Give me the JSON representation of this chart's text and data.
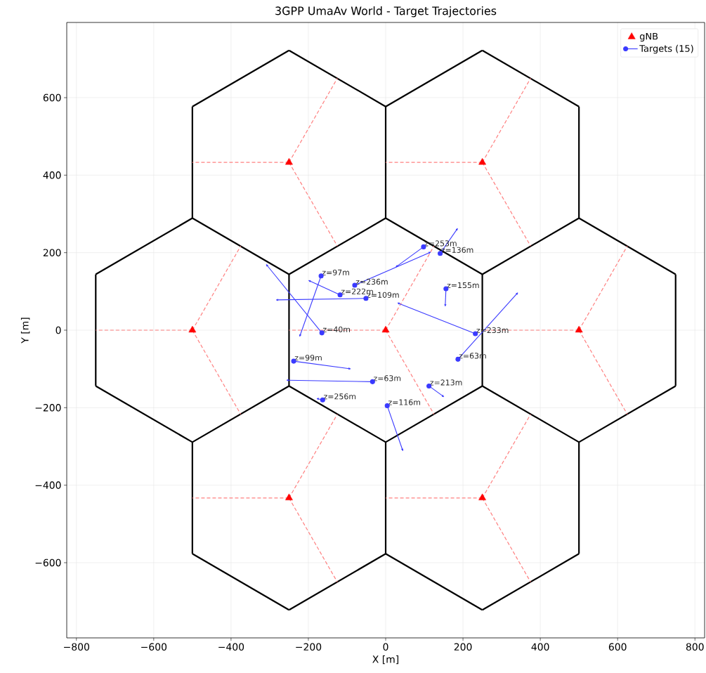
{
  "chart_data": {
    "type": "line",
    "title": "3GPP UmaAv World - Target Trajectories",
    "xlabel": "X [m]",
    "ylabel": "Y [m]",
    "xlim": [
      -825,
      825
    ],
    "ylim": [
      -794,
      794
    ],
    "xticks": [
      {
        "value": -800,
        "label": "−800"
      },
      {
        "value": -600,
        "label": "−600"
      },
      {
        "value": -400,
        "label": "−400"
      },
      {
        "value": -200,
        "label": "−200"
      },
      0,
      200,
      400,
      600,
      800
    ],
    "yticks": [
      {
        "value": -600,
        "label": "−600"
      },
      {
        "value": -400,
        "label": "−400"
      },
      {
        "value": -200,
        "label": "−200"
      },
      0,
      200,
      400,
      600
    ],
    "grid": true,
    "legend": "top right",
    "series": [
      {
        "color": "#000000",
        "marker": "none",
        "x": [
          250,
          0
        ],
        "values": [
          144,
          289
        ]
      },
      {
        "color": "#000000",
        "marker": "none",
        "x": [
          0,
          -250
        ],
        "values": [
          289,
          144
        ]
      },
      {
        "color": "#000000",
        "marker": "none",
        "x": [
          -250,
          -250
        ],
        "values": [
          144,
          -144
        ]
      },
      {
        "color": "#000000",
        "marker": "none",
        "x": [
          -250,
          0
        ],
        "values": [
          -144,
          -289
        ]
      },
      {
        "color": "#000000",
        "marker": "none",
        "x": [
          0,
          250
        ],
        "values": [
          -289,
          -144
        ]
      },
      {
        "color": "#000000",
        "marker": "none",
        "x": [
          250,
          250
        ],
        "values": [
          -144,
          144
        ]
      },
      {
        "color": "#000000",
        "marker": "none",
        "x": [
          750,
          500
        ],
        "values": [
          144,
          289
        ]
      },
      {
        "color": "#000000",
        "marker": "none",
        "x": [
          500,
          250
        ],
        "values": [
          289,
          144
        ]
      },
      {
        "color": "#000000",
        "marker": "none",
        "x": [
          250,
          500
        ],
        "values": [
          -144,
          -289
        ]
      },
      {
        "color": "#000000",
        "marker": "none",
        "x": [
          500,
          750
        ],
        "values": [
          -289,
          -144
        ]
      },
      {
        "color": "#000000",
        "marker": "none",
        "x": [
          750,
          750
        ],
        "values": [
          -144,
          144
        ]
      },
      {
        "color": "#000000",
        "marker": "none",
        "x": [
          -250,
          -500
        ],
        "values": [
          144,
          289
        ]
      },
      {
        "color": "#000000",
        "marker": "none",
        "x": [
          -500,
          -750
        ],
        "values": [
          289,
          144
        ]
      },
      {
        "color": "#000000",
        "marker": "none",
        "x": [
          -750,
          -750
        ],
        "values": [
          144,
          -144
        ]
      },
      {
        "color": "#000000",
        "marker": "none",
        "x": [
          -750,
          -500
        ],
        "values": [
          -144,
          -289
        ]
      },
      {
        "color": "#000000",
        "marker": "none",
        "x": [
          -500,
          -250
        ],
        "values": [
          -289,
          -144
        ]
      },
      {
        "color": "#000000",
        "marker": "none",
        "x": [
          500,
          250
        ],
        "values": [
          577,
          722
        ]
      },
      {
        "color": "#000000",
        "marker": "none",
        "x": [
          250,
          0
        ],
        "values": [
          722,
          577
        ]
      },
      {
        "color": "#000000",
        "marker": "none",
        "x": [
          0,
          0
        ],
        "values": [
          577,
          289
        ]
      },
      {
        "color": "#000000",
        "marker": "none",
        "x": [
          500,
          500
        ],
        "values": [
          289,
          577
        ]
      },
      {
        "color": "#000000",
        "marker": "none",
        "x": [
          0,
          -250
        ],
        "values": [
          577,
          722
        ]
      },
      {
        "color": "#000000",
        "marker": "none",
        "x": [
          -250,
          -500
        ],
        "values": [
          722,
          577
        ]
      },
      {
        "color": "#000000",
        "marker": "none",
        "x": [
          -500,
          -500
        ],
        "values": [
          577,
          289
        ]
      },
      {
        "color": "#000000",
        "marker": "none",
        "x": [
          0,
          0
        ],
        "values": [
          -289,
          -577
        ]
      },
      {
        "color": "#000000",
        "marker": "none",
        "x": [
          0,
          250
        ],
        "values": [
          -577,
          -722
        ]
      },
      {
        "color": "#000000",
        "marker": "none",
        "x": [
          250,
          500
        ],
        "values": [
          -722,
          -577
        ]
      },
      {
        "color": "#000000",
        "marker": "none",
        "x": [
          500,
          500
        ],
        "values": [
          -577,
          -289
        ]
      },
      {
        "color": "#000000",
        "marker": "none",
        "x": [
          -500,
          -500
        ],
        "values": [
          -289,
          -577
        ]
      },
      {
        "color": "#000000",
        "marker": "none",
        "x": [
          -500,
          -250
        ],
        "values": [
          -577,
          -722
        ]
      },
      {
        "color": "#000000",
        "marker": "none",
        "x": [
          -250,
          0
        ],
        "values": [
          -722,
          -577
        ]
      },
      {
        "color": "#ff8080",
        "marker": "none",
        "line_style": "dashed",
        "x": [
          -250,
          -500
        ],
        "values": [
          433,
          433
        ]
      },
      {
        "color": "#ff8080",
        "marker": "none",
        "line_style": "dashed",
        "x": [
          -250,
          -125
        ],
        "values": [
          433,
          650
        ]
      },
      {
        "color": "#ff8080",
        "marker": "none",
        "line_style": "dashed",
        "x": [
          -250,
          -125
        ],
        "values": [
          433,
          217
        ]
      },
      {
        "color": "#ff8080",
        "marker": "none",
        "line_style": "dashed",
        "x": [
          250,
          0
        ],
        "values": [
          433,
          433
        ]
      },
      {
        "color": "#ff8080",
        "marker": "none",
        "line_style": "dashed",
        "x": [
          250,
          375
        ],
        "values": [
          433,
          650
        ]
      },
      {
        "color": "#ff8080",
        "marker": "none",
        "line_style": "dashed",
        "x": [
          250,
          375
        ],
        "values": [
          433,
          217
        ]
      },
      {
        "color": "#ff8080",
        "marker": "none",
        "line_style": "dashed",
        "x": [
          -500,
          -750
        ],
        "values": [
          0,
          0
        ]
      },
      {
        "color": "#ff8080",
        "marker": "none",
        "line_style": "dashed",
        "x": [
          -500,
          -375
        ],
        "values": [
          0,
          217
        ]
      },
      {
        "color": "#ff8080",
        "marker": "none",
        "line_style": "dashed",
        "x": [
          -500,
          -375
        ],
        "values": [
          0,
          -217
        ]
      },
      {
        "color": "#ff8080",
        "marker": "none",
        "line_style": "dashed",
        "x": [
          0,
          -250
        ],
        "values": [
          0,
          0
        ]
      },
      {
        "color": "#ff8080",
        "marker": "none",
        "line_style": "dashed",
        "x": [
          0,
          125
        ],
        "values": [
          0,
          217
        ]
      },
      {
        "color": "#ff8080",
        "marker": "none",
        "line_style": "dashed",
        "x": [
          0,
          125
        ],
        "values": [
          0,
          -217
        ]
      },
      {
        "color": "#ff8080",
        "marker": "none",
        "line_style": "dashed",
        "x": [
          500,
          250
        ],
        "values": [
          0,
          0
        ]
      },
      {
        "color": "#ff8080",
        "marker": "none",
        "line_style": "dashed",
        "x": [
          500,
          625
        ],
        "values": [
          0,
          217
        ]
      },
      {
        "color": "#ff8080",
        "marker": "none",
        "line_style": "dashed",
        "x": [
          500,
          625
        ],
        "values": [
          0,
          -217
        ]
      },
      {
        "color": "#ff8080",
        "marker": "none",
        "line_style": "dashed",
        "x": [
          -250,
          -500
        ],
        "values": [
          -433,
          -433
        ]
      },
      {
        "color": "#ff8080",
        "marker": "none",
        "line_style": "dashed",
        "x": [
          -250,
          -125
        ],
        "values": [
          -433,
          -217
        ]
      },
      {
        "color": "#ff8080",
        "marker": "none",
        "line_style": "dashed",
        "x": [
          -250,
          -125
        ],
        "values": [
          -433,
          -650
        ]
      },
      {
        "color": "#ff8080",
        "marker": "none",
        "line_style": "dashed",
        "x": [
          250,
          0
        ],
        "values": [
          -433,
          -433
        ]
      },
      {
        "color": "#ff8080",
        "marker": "none",
        "line_style": "dashed",
        "x": [
          250,
          375
        ],
        "values": [
          -433,
          -217
        ]
      },
      {
        "color": "#ff8080",
        "marker": "none",
        "line_style": "dashed",
        "x": [
          250,
          375
        ],
        "values": [
          -433,
          -650
        ]
      },
      {
        "type": "scatter",
        "name": "gNB",
        "color": "#ff0000",
        "marker": "triangle",
        "x": [
          -250,
          250,
          -500,
          0,
          500,
          -250,
          250
        ],
        "values": [
          433,
          433,
          0,
          0,
          0,
          -433,
          -433
        ]
      },
      {
        "name": "Targets (15)",
        "color": "#3a3aff",
        "marker": "circle",
        "x": [
          -167,
          -223,
          null,
          -80,
          118,
          null,
          98,
          25,
          null,
          141,
          187,
          null,
          -118,
          -201,
          null,
          -51,
          -285,
          null,
          -165,
          -310,
          null,
          156,
          154,
          null,
          232,
          29,
          null,
          187,
          343,
          null,
          -238,
          -89,
          null,
          -34,
          -258,
          null,
          -163,
          -180,
          null,
          4,
          45,
          null,
          112,
          152
        ],
        "values": [
          140,
          -18,
          null,
          116,
          202,
          null,
          215,
          162,
          null,
          198,
          264,
          null,
          91,
          129,
          null,
          82,
          78,
          null,
          -7,
          171,
          null,
          107,
          60,
          null,
          -9,
          71,
          null,
          -75,
          98,
          null,
          -80,
          -100,
          null,
          -133,
          -129,
          null,
          -180,
          -176,
          null,
          -195,
          -313,
          null,
          -144,
          -173
        ]
      }
    ],
    "annotations": [
      {
        "text": "z=97m",
        "x": -167,
        "y": 140
      },
      {
        "text": "z=236m",
        "x": -80,
        "y": 116
      },
      {
        "text": "z=253m",
        "x": 98,
        "y": 215
      },
      {
        "text": "z=136m",
        "x": 141,
        "y": 198
      },
      {
        "text": "z=222m",
        "x": -118,
        "y": 91
      },
      {
        "text": "z=109m",
        "x": -51,
        "y": 82
      },
      {
        "text": "z=40m",
        "x": -165,
        "y": -7
      },
      {
        "text": "z=155m",
        "x": 156,
        "y": 107
      },
      {
        "text": "z=233m",
        "x": 232,
        "y": -9
      },
      {
        "text": "z=63m",
        "x": 187,
        "y": -75
      },
      {
        "text": "z=99m",
        "x": -238,
        "y": -80
      },
      {
        "text": "z=63m",
        "x": -34,
        "y": -133
      },
      {
        "text": "z=256m",
        "x": -163,
        "y": -180
      },
      {
        "text": "z=116m",
        "x": 4,
        "y": -195
      },
      {
        "text": "z=213m",
        "x": 112,
        "y": -144
      }
    ]
  }
}
